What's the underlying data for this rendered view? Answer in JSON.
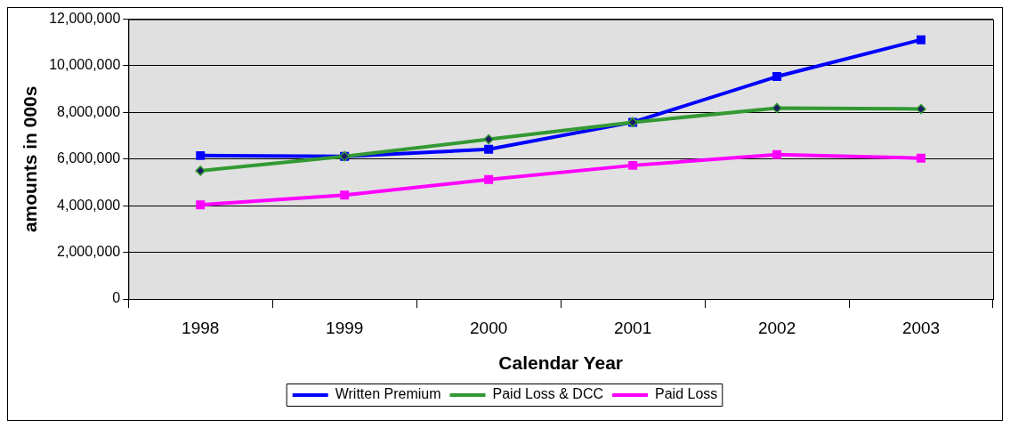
{
  "chart_data": {
    "type": "line",
    "xlabel": "Calendar Year",
    "ylabel": "amounts in 000s",
    "categories": [
      "1998",
      "1999",
      "2000",
      "2001",
      "2002",
      "2003"
    ],
    "series": [
      {
        "name": "Written Premium",
        "color": "#0000ff",
        "marker": "square",
        "values": [
          6150000,
          6120000,
          6420000,
          7580000,
          9540000,
          11120000
        ]
      },
      {
        "name": "Paid Loss & DCC",
        "color": "#339933",
        "marker": "diamond",
        "values": [
          5500000,
          6120000,
          6850000,
          7580000,
          8190000,
          8150000
        ]
      },
      {
        "name": "Paid Loss",
        "color": "#ff00ff",
        "marker": "square",
        "values": [
          4040000,
          4460000,
          5120000,
          5730000,
          6190000,
          6040000
        ]
      }
    ],
    "ylim": [
      0,
      12000000
    ],
    "yticks": [
      0,
      {
        "value": 2000000,
        "label": "2,000,000"
      },
      {
        "value": 4000000,
        "label": "4,000,000"
      },
      {
        "value": 6000000,
        "label": "6,000,000"
      },
      {
        "value": 8000000,
        "label": "8,000,000"
      },
      {
        "value": 10000000,
        "label": "10,000,000"
      },
      {
        "value": 12000000,
        "label": "12,000,000"
      }
    ],
    "grid": "y",
    "legend": "bottom"
  }
}
